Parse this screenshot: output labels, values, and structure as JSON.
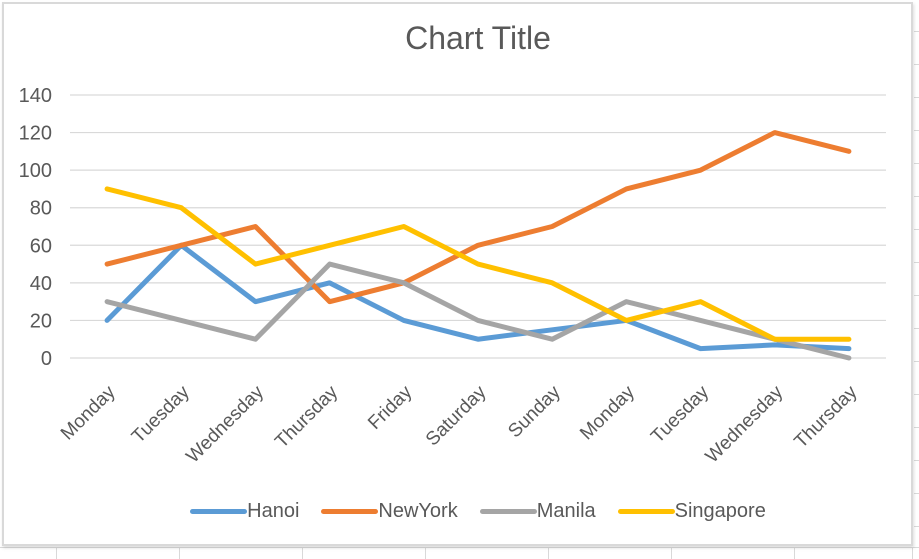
{
  "chart_data": {
    "type": "line",
    "title": "Chart Title",
    "categories": [
      "Monday",
      "Tuesday",
      "Wednesday",
      "Thursday",
      "Friday",
      "Saturday",
      "Sunday",
      "Monday",
      "Tuesday",
      "Wednesday",
      "Thursday"
    ],
    "series": [
      {
        "name": "Hanoi",
        "color": "#5B9BD5",
        "values": [
          20,
          60,
          30,
          40,
          20,
          10,
          15,
          20,
          5,
          7,
          5
        ]
      },
      {
        "name": "NewYork",
        "color": "#ED7D31",
        "values": [
          50,
          60,
          70,
          30,
          40,
          60,
          70,
          90,
          100,
          120,
          110
        ]
      },
      {
        "name": "Manila",
        "color": "#A5A5A5",
        "values": [
          30,
          20,
          10,
          50,
          40,
          20,
          10,
          30,
          20,
          10,
          0
        ]
      },
      {
        "name": "Singapore",
        "color": "#FFC000",
        "values": [
          90,
          80,
          50,
          60,
          70,
          50,
          40,
          20,
          30,
          10,
          10
        ]
      }
    ],
    "xlabel": "",
    "ylabel": "",
    "ylim": [
      0,
      140
    ],
    "yticks": [
      0,
      20,
      40,
      60,
      80,
      100,
      120,
      140
    ],
    "grid": true,
    "legend_position": "bottom",
    "x_label_rotation_deg": 45
  },
  "colors": {
    "grid": "#D9D9D9",
    "axis_text": "#595959",
    "title_text": "#595959",
    "chart_border": "#D9D9D9",
    "sheet_gridline": "#D9D9D9",
    "background": "#FFFFFF"
  }
}
